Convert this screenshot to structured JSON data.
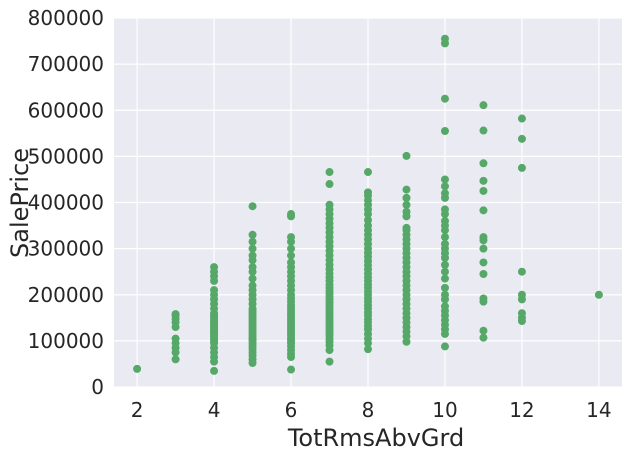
{
  "chart_data": {
    "type": "scatter",
    "xlabel": "TotRmsAbvGrd",
    "ylabel": "SalePrice",
    "xlim": [
      1.4,
      14.6
    ],
    "ylim": [
      0,
      800000
    ],
    "xticks": [
      2,
      4,
      6,
      8,
      10,
      12,
      14
    ],
    "yticks": [
      0,
      100000,
      200000,
      300000,
      400000,
      500000,
      600000,
      700000,
      800000
    ],
    "grid": true,
    "point_color": "#55a868",
    "background_color": "#eaeaf2",
    "points": [
      [
        2,
        39300
      ],
      [
        3,
        60000
      ],
      [
        3,
        75000
      ],
      [
        3,
        85000
      ],
      [
        3,
        95000
      ],
      [
        3,
        105000
      ],
      [
        3,
        130000
      ],
      [
        3,
        140000
      ],
      [
        3,
        148000
      ],
      [
        3,
        155000
      ],
      [
        3,
        158000
      ],
      [
        4,
        34900
      ],
      [
        4,
        55000
      ],
      [
        4,
        65000
      ],
      [
        4,
        75000
      ],
      [
        4,
        85000
      ],
      [
        4,
        95000
      ],
      [
        4,
        100000
      ],
      [
        4,
        105000
      ],
      [
        4,
        110000
      ],
      [
        4,
        115000
      ],
      [
        4,
        118000
      ],
      [
        4,
        120000
      ],
      [
        4,
        124000
      ],
      [
        4,
        128000
      ],
      [
        4,
        132000
      ],
      [
        4,
        136000
      ],
      [
        4,
        140000
      ],
      [
        4,
        145000
      ],
      [
        4,
        150000
      ],
      [
        4,
        155000
      ],
      [
        4,
        160000
      ],
      [
        4,
        170000
      ],
      [
        4,
        180000
      ],
      [
        4,
        190000
      ],
      [
        4,
        200000
      ],
      [
        4,
        210000
      ],
      [
        4,
        230000
      ],
      [
        4,
        240000
      ],
      [
        4,
        250000
      ],
      [
        4,
        260000
      ],
      [
        5,
        52000
      ],
      [
        5,
        60000
      ],
      [
        5,
        68000
      ],
      [
        5,
        75000
      ],
      [
        5,
        82000
      ],
      [
        5,
        88000
      ],
      [
        5,
        94000
      ],
      [
        5,
        100000
      ],
      [
        5,
        105000
      ],
      [
        5,
        110000
      ],
      [
        5,
        115000
      ],
      [
        5,
        120000
      ],
      [
        5,
        125000
      ],
      [
        5,
        130000
      ],
      [
        5,
        135000
      ],
      [
        5,
        140000
      ],
      [
        5,
        145000
      ],
      [
        5,
        150000
      ],
      [
        5,
        155000
      ],
      [
        5,
        160000
      ],
      [
        5,
        165000
      ],
      [
        5,
        170000
      ],
      [
        5,
        180000
      ],
      [
        5,
        190000
      ],
      [
        5,
        200000
      ],
      [
        5,
        210000
      ],
      [
        5,
        220000
      ],
      [
        5,
        235000
      ],
      [
        5,
        250000
      ],
      [
        5,
        260000
      ],
      [
        5,
        275000
      ],
      [
        5,
        285000
      ],
      [
        5,
        300000
      ],
      [
        5,
        315000
      ],
      [
        5,
        330000
      ],
      [
        5,
        392000
      ],
      [
        6,
        37900
      ],
      [
        6,
        65000
      ],
      [
        6,
        72000
      ],
      [
        6,
        80000
      ],
      [
        6,
        88000
      ],
      [
        6,
        95000
      ],
      [
        6,
        100000
      ],
      [
        6,
        106000
      ],
      [
        6,
        112000
      ],
      [
        6,
        118000
      ],
      [
        6,
        124000
      ],
      [
        6,
        130000
      ],
      [
        6,
        136000
      ],
      [
        6,
        142000
      ],
      [
        6,
        148000
      ],
      [
        6,
        154000
      ],
      [
        6,
        160000
      ],
      [
        6,
        166000
      ],
      [
        6,
        172000
      ],
      [
        6,
        178000
      ],
      [
        6,
        185000
      ],
      [
        6,
        192000
      ],
      [
        6,
        200000
      ],
      [
        6,
        210000
      ],
      [
        6,
        220000
      ],
      [
        6,
        230000
      ],
      [
        6,
        240000
      ],
      [
        6,
        250000
      ],
      [
        6,
        260000
      ],
      [
        6,
        270000
      ],
      [
        6,
        285000
      ],
      [
        6,
        300000
      ],
      [
        6,
        315000
      ],
      [
        6,
        325000
      ],
      [
        6,
        370000
      ],
      [
        6,
        375000
      ],
      [
        7,
        55000
      ],
      [
        7,
        80000
      ],
      [
        7,
        90000
      ],
      [
        7,
        98000
      ],
      [
        7,
        105000
      ],
      [
        7,
        112000
      ],
      [
        7,
        118000
      ],
      [
        7,
        124000
      ],
      [
        7,
        130000
      ],
      [
        7,
        136000
      ],
      [
        7,
        142000
      ],
      [
        7,
        148000
      ],
      [
        7,
        154000
      ],
      [
        7,
        160000
      ],
      [
        7,
        166000
      ],
      [
        7,
        172000
      ],
      [
        7,
        178000
      ],
      [
        7,
        184000
      ],
      [
        7,
        190000
      ],
      [
        7,
        196000
      ],
      [
        7,
        202000
      ],
      [
        7,
        208000
      ],
      [
        7,
        215000
      ],
      [
        7,
        222000
      ],
      [
        7,
        230000
      ],
      [
        7,
        238000
      ],
      [
        7,
        246000
      ],
      [
        7,
        255000
      ],
      [
        7,
        265000
      ],
      [
        7,
        275000
      ],
      [
        7,
        285000
      ],
      [
        7,
        295000
      ],
      [
        7,
        305000
      ],
      [
        7,
        315000
      ],
      [
        7,
        325000
      ],
      [
        7,
        335000
      ],
      [
        7,
        345000
      ],
      [
        7,
        355000
      ],
      [
        7,
        365000
      ],
      [
        7,
        375000
      ],
      [
        7,
        385000
      ],
      [
        7,
        395000
      ],
      [
        7,
        440000
      ],
      [
        7,
        466000
      ],
      [
        8,
        82000
      ],
      [
        8,
        95000
      ],
      [
        8,
        105000
      ],
      [
        8,
        115000
      ],
      [
        8,
        125000
      ],
      [
        8,
        132000
      ],
      [
        8,
        140000
      ],
      [
        8,
        147000
      ],
      [
        8,
        155000
      ],
      [
        8,
        162000
      ],
      [
        8,
        170000
      ],
      [
        8,
        177000
      ],
      [
        8,
        185000
      ],
      [
        8,
        192000
      ],
      [
        8,
        200000
      ],
      [
        8,
        207000
      ],
      [
        8,
        215000
      ],
      [
        8,
        222000
      ],
      [
        8,
        230000
      ],
      [
        8,
        238000
      ],
      [
        8,
        246000
      ],
      [
        8,
        255000
      ],
      [
        8,
        264000
      ],
      [
        8,
        273000
      ],
      [
        8,
        282000
      ],
      [
        8,
        291000
      ],
      [
        8,
        300000
      ],
      [
        8,
        310000
      ],
      [
        8,
        320000
      ],
      [
        8,
        330000
      ],
      [
        8,
        340000
      ],
      [
        8,
        350000
      ],
      [
        8,
        362000
      ],
      [
        8,
        375000
      ],
      [
        8,
        385000
      ],
      [
        8,
        395000
      ],
      [
        8,
        405000
      ],
      [
        8,
        415000
      ],
      [
        8,
        422000
      ],
      [
        8,
        466000
      ],
      [
        9,
        98000
      ],
      [
        9,
        110000
      ],
      [
        9,
        120000
      ],
      [
        9,
        130000
      ],
      [
        9,
        140000
      ],
      [
        9,
        150000
      ],
      [
        9,
        160000
      ],
      [
        9,
        170000
      ],
      [
        9,
        180000
      ],
      [
        9,
        190000
      ],
      [
        9,
        200000
      ],
      [
        9,
        210000
      ],
      [
        9,
        220000
      ],
      [
        9,
        230000
      ],
      [
        9,
        240000
      ],
      [
        9,
        250000
      ],
      [
        9,
        260000
      ],
      [
        9,
        270000
      ],
      [
        9,
        280000
      ],
      [
        9,
        290000
      ],
      [
        9,
        300000
      ],
      [
        9,
        310000
      ],
      [
        9,
        320000
      ],
      [
        9,
        330000
      ],
      [
        9,
        340000
      ],
      [
        9,
        345000
      ],
      [
        9,
        370000
      ],
      [
        9,
        380000
      ],
      [
        9,
        395000
      ],
      [
        9,
        410000
      ],
      [
        9,
        428000
      ],
      [
        9,
        501000
      ],
      [
        10,
        88000
      ],
      [
        10,
        115000
      ],
      [
        10,
        125000
      ],
      [
        10,
        135000
      ],
      [
        10,
        145000
      ],
      [
        10,
        155000
      ],
      [
        10,
        165000
      ],
      [
        10,
        175000
      ],
      [
        10,
        190000
      ],
      [
        10,
        200000
      ],
      [
        10,
        215000
      ],
      [
        10,
        235000
      ],
      [
        10,
        250000
      ],
      [
        10,
        265000
      ],
      [
        10,
        280000
      ],
      [
        10,
        290000
      ],
      [
        10,
        300000
      ],
      [
        10,
        310000
      ],
      [
        10,
        325000
      ],
      [
        10,
        340000
      ],
      [
        10,
        350000
      ],
      [
        10,
        360000
      ],
      [
        10,
        375000
      ],
      [
        10,
        385000
      ],
      [
        10,
        410000
      ],
      [
        10,
        420000
      ],
      [
        10,
        435000
      ],
      [
        10,
        450000
      ],
      [
        10,
        555000
      ],
      [
        10,
        625000
      ],
      [
        10,
        745000
      ],
      [
        10,
        755000
      ],
      [
        11,
        107000
      ],
      [
        11,
        122000
      ],
      [
        11,
        185000
      ],
      [
        11,
        192000
      ],
      [
        11,
        245000
      ],
      [
        11,
        270000
      ],
      [
        11,
        300000
      ],
      [
        11,
        318000
      ],
      [
        11,
        325000
      ],
      [
        11,
        383000
      ],
      [
        11,
        425000
      ],
      [
        11,
        447000
      ],
      [
        11,
        485000
      ],
      [
        11,
        556000
      ],
      [
        11,
        611000
      ],
      [
        12,
        143000
      ],
      [
        12,
        150000
      ],
      [
        12,
        160000
      ],
      [
        12,
        190000
      ],
      [
        12,
        200000
      ],
      [
        12,
        250000
      ],
      [
        12,
        475000
      ],
      [
        12,
        538000
      ],
      [
        12,
        582000
      ],
      [
        14,
        200000
      ]
    ]
  }
}
